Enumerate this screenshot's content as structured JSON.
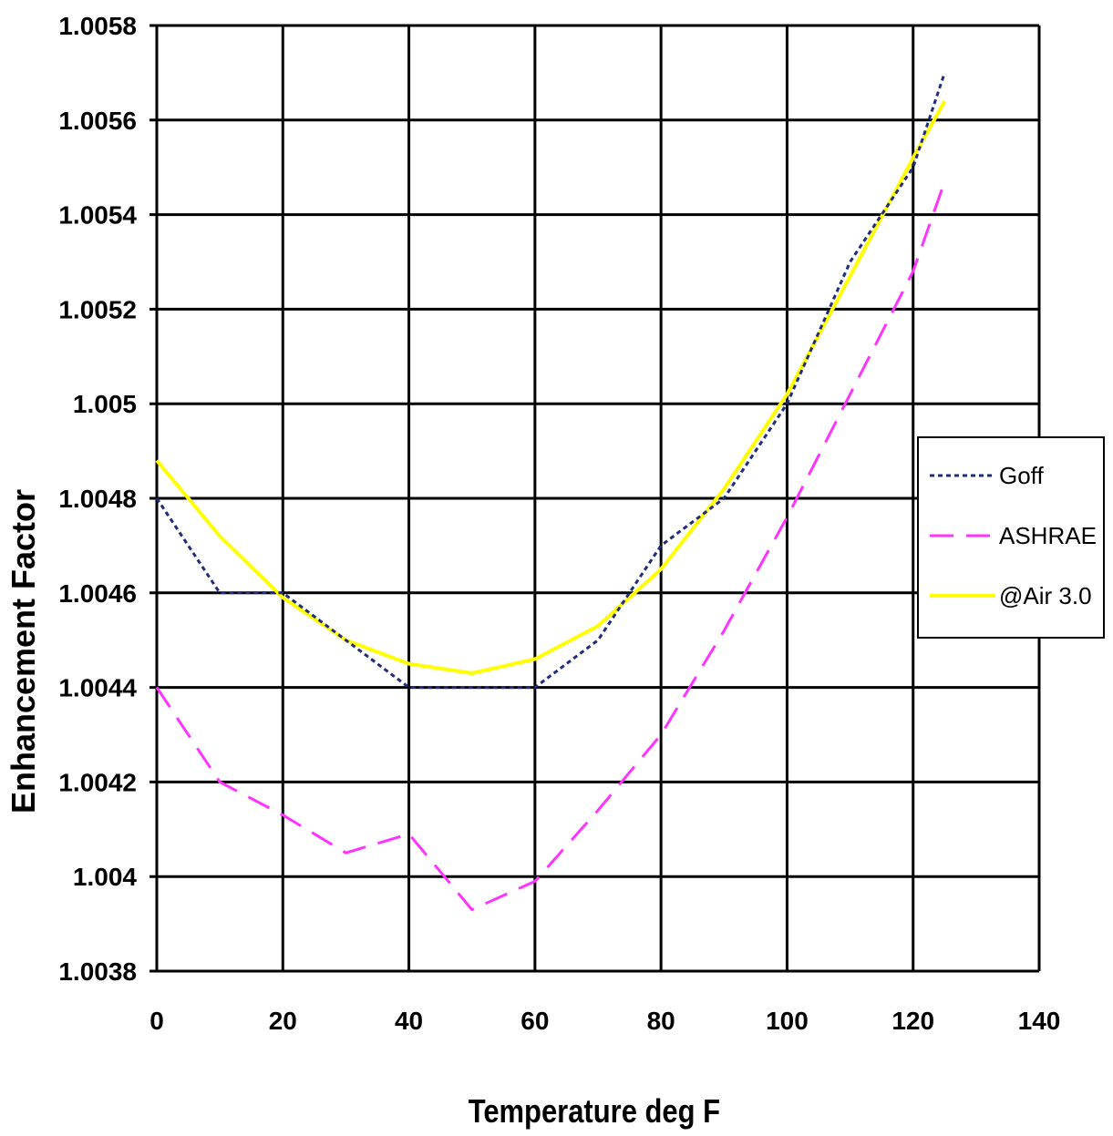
{
  "chart_data": {
    "type": "line",
    "title": "",
    "xlabel": "Temperature deg F",
    "ylabel": "Enhancement Factor",
    "xlim": [
      0,
      140
    ],
    "ylim": [
      1.0038,
      1.0058
    ],
    "x_ticks": [
      "0",
      "20",
      "40",
      "60",
      "80",
      "100",
      "120",
      "140"
    ],
    "y_ticks": [
      "1.0038",
      "1.004",
      "1.0042",
      "1.0044",
      "1.0046",
      "1.0048",
      "1.005",
      "1.0052",
      "1.0054",
      "1.0056",
      "1.0058"
    ],
    "grid": true,
    "legend_position": "right",
    "series": [
      {
        "name": "Goff",
        "color": "#1f2d7a",
        "style": "dotted",
        "points": [
          [
            0,
            1.0048
          ],
          [
            10,
            1.0046
          ],
          [
            20,
            1.0046
          ],
          [
            30,
            1.0045
          ],
          [
            40,
            1.0044
          ],
          [
            50,
            1.0044
          ],
          [
            60,
            1.0044
          ],
          [
            70,
            1.0045
          ],
          [
            80,
            1.0047
          ],
          [
            90,
            1.0048
          ],
          [
            100,
            1.005
          ],
          [
            110,
            1.0053
          ],
          [
            120,
            1.0055
          ],
          [
            125,
            1.0057
          ]
        ]
      },
      {
        "name": "ASHRAE",
        "color": "#ff33ff",
        "style": "dashed",
        "points": [
          [
            0,
            1.0044
          ],
          [
            10,
            1.0042
          ],
          [
            20,
            1.00413
          ],
          [
            30,
            1.00405
          ],
          [
            40,
            1.00409
          ],
          [
            50,
            1.00393
          ],
          [
            60,
            1.00399
          ],
          [
            70,
            1.00414
          ],
          [
            80,
            1.0043
          ],
          [
            90,
            1.00452
          ],
          [
            100,
            1.00476
          ],
          [
            110,
            1.00502
          ],
          [
            120,
            1.00528
          ],
          [
            125,
            1.00547
          ]
        ]
      },
      {
        "name": "@Air 3.0",
        "color": "#ffff00",
        "style": "solid",
        "points": [
          [
            0,
            1.00488
          ],
          [
            10,
            1.00472
          ],
          [
            20,
            1.00459
          ],
          [
            30,
            1.0045
          ],
          [
            40,
            1.00445
          ],
          [
            50,
            1.00443
          ],
          [
            60,
            1.00446
          ],
          [
            70,
            1.00453
          ],
          [
            80,
            1.00465
          ],
          [
            90,
            1.00482
          ],
          [
            100,
            1.00502
          ],
          [
            110,
            1.00527
          ],
          [
            120,
            1.00552
          ],
          [
            125,
            1.00564
          ]
        ]
      }
    ]
  }
}
